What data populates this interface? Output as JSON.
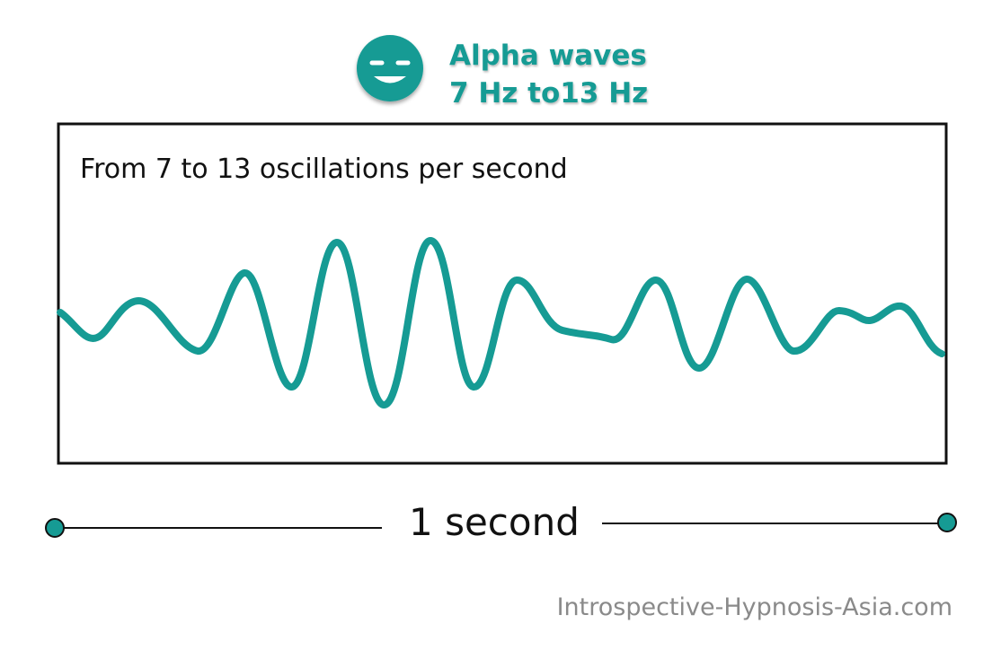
{
  "header": {
    "title": "Alpha waves",
    "frequency_range": "7 Hz to13 Hz",
    "face_icon": "smiling-face-icon"
  },
  "panel": {
    "caption": "From 7 to 13 oscillations per second"
  },
  "timeline": {
    "label": "1 second",
    "endpoint_icon": "circle-marker-icon"
  },
  "footer": {
    "credit": "Introspective-Hypnosis-Asia.com"
  },
  "colors": {
    "accent": "#169b94",
    "accent_dark": "#0f6f6a",
    "frame": "#111111",
    "credit": "#8a8a8a"
  }
}
